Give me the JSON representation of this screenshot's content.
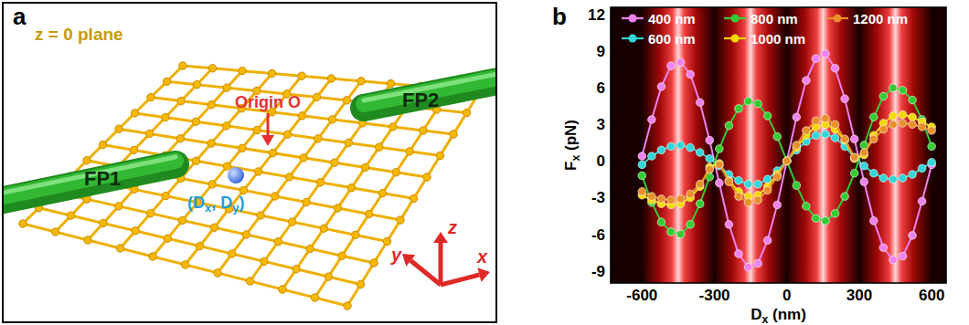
{
  "diagram": {
    "letter": "a",
    "plane_label": "z = 0 plane",
    "origin_label": "Origin O",
    "point_label": [
      {
        "text": "(D"
      },
      {
        "sub": "x"
      },
      {
        "text": ", D"
      },
      {
        "sub": "y"
      },
      {
        "text": ")"
      }
    ],
    "fibers": [
      "FP1",
      "FP2"
    ],
    "axes": [
      "x",
      "y",
      "z"
    ]
  },
  "panel_b": {
    "letter": "b"
  },
  "chart_data": {
    "type": "line",
    "x_label": [
      {
        "text": "D"
      },
      {
        "sub": "x"
      },
      {
        "text": " (nm)"
      }
    ],
    "y_label": [
      {
        "text": "F"
      },
      {
        "sub": "x"
      },
      {
        "text": " (pN)"
      }
    ],
    "x": [
      -600,
      -560,
      -520,
      -480,
      -440,
      -400,
      -360,
      -320,
      -280,
      -240,
      -200,
      -160,
      -120,
      -80,
      -40,
      0,
      40,
      80,
      120,
      160,
      200,
      240,
      280,
      320,
      360,
      400,
      440,
      480,
      520,
      560,
      600
    ],
    "xlim": [
      -730,
      660
    ],
    "xticks": [
      -600,
      -300,
      0,
      300,
      600
    ],
    "ylim": [
      -10,
      12.6
    ],
    "yticks": [
      -9,
      -6,
      -3,
      0,
      3,
      6,
      9,
      12
    ],
    "marker": "circle",
    "legend": "top",
    "series": [
      {
        "name": "400 nm",
        "color": "#ee82ee",
        "values": [
          0.4,
          3.4,
          6.1,
          7.8,
          8.1,
          7.1,
          4.8,
          1.7,
          -1.8,
          -5.2,
          -7.6,
          -8.7,
          -8.4,
          -6.5,
          -3.6,
          0,
          3.6,
          6.6,
          8.4,
          8.8,
          7.6,
          5.1,
          1.8,
          -1.7,
          -4.9,
          -7.1,
          -8.1,
          -7.8,
          -6.1,
          -3.3,
          -0.3
        ]
      },
      {
        "name": "600 nm",
        "color": "#33d6d6",
        "values": [
          -0.3,
          0.4,
          0.9,
          1.2,
          1.3,
          1.1,
          0.7,
          0.2,
          -0.4,
          -1.1,
          -1.6,
          -1.9,
          -1.9,
          -1.5,
          -0.8,
          0,
          0.9,
          1.6,
          2.1,
          2.2,
          1.9,
          1.2,
          0.3,
          -0.4,
          -1.0,
          -1.4,
          -1.5,
          -1.4,
          -1.1,
          -0.6,
          -0.1
        ]
      },
      {
        "name": "800 nm",
        "color": "#33cc33",
        "values": [
          -1.2,
          -3.4,
          -5.0,
          -5.8,
          -6.0,
          -5.2,
          -3.5,
          -1.3,
          1.0,
          2.9,
          4.3,
          4.9,
          4.7,
          3.7,
          2.0,
          0,
          -2.0,
          -3.7,
          -4.7,
          -4.9,
          -4.3,
          -2.9,
          -1.0,
          1.3,
          3.6,
          5.3,
          6.0,
          5.8,
          5.0,
          3.4,
          1.2
        ]
      },
      {
        "name": "1000 nm",
        "color": "#f5d800",
        "values": [
          -2.8,
          -3.2,
          -3.5,
          -3.6,
          -3.5,
          -3.0,
          -2.1,
          -0.5,
          -0.2,
          -1.6,
          -2.5,
          -2.9,
          -2.8,
          -2.1,
          -1.1,
          0,
          1.1,
          2.1,
          2.8,
          3.0,
          2.6,
          1.7,
          0.2,
          0.5,
          2.1,
          3.1,
          3.7,
          3.8,
          3.6,
          3.2,
          2.8
        ]
      },
      {
        "name": "1200 nm",
        "color": "#e8902a",
        "values": [
          -2.5,
          -2.9,
          -3.1,
          -3.2,
          -3.1,
          -2.7,
          -1.9,
          -0.7,
          -0.3,
          -1.7,
          -2.9,
          -3.4,
          -3.2,
          -2.4,
          -1.3,
          0,
          1.3,
          2.5,
          3.3,
          3.5,
          3.0,
          1.8,
          0.3,
          0.7,
          1.8,
          2.6,
          3.0,
          3.1,
          3.0,
          2.8,
          2.5
        ]
      }
    ]
  }
}
